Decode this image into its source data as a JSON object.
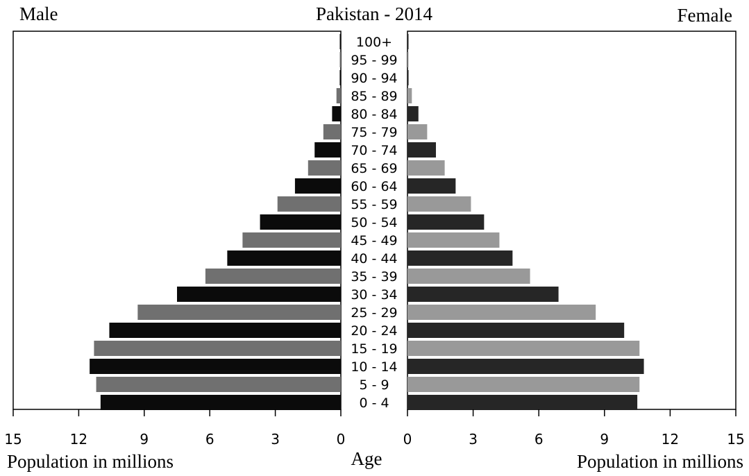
{
  "chart_data": {
    "type": "bar",
    "title": "Pakistan - 2014",
    "left_label": "Male",
    "right_label": "Female",
    "center_label": "Age",
    "xlabel_left": "Population in millions",
    "xlabel_right": "Population in millions",
    "xlim": [
      0,
      15
    ],
    "ticks": [
      0,
      3,
      6,
      9,
      12,
      15
    ],
    "categories": [
      "100+",
      "95 - 99",
      "90 - 94",
      "85 - 89",
      "80 - 84",
      "75 - 79",
      "70 - 74",
      "65 - 69",
      "60 - 64",
      "55 - 59",
      "50 - 54",
      "45 - 49",
      "40 - 44",
      "35 - 39",
      "30 - 34",
      "25 - 29",
      "20 - 24",
      "15 - 19",
      "10 - 14",
      "5 - 9",
      "0 - 4"
    ],
    "series": [
      {
        "name": "Male",
        "values": [
          0.02,
          0.03,
          0.05,
          0.2,
          0.4,
          0.8,
          1.2,
          1.5,
          2.1,
          2.9,
          3.7,
          4.5,
          5.2,
          6.2,
          7.5,
          9.3,
          10.6,
          11.3,
          11.5,
          11.2,
          11.0
        ]
      },
      {
        "name": "Female",
        "values": [
          0.02,
          0.03,
          0.05,
          0.2,
          0.5,
          0.9,
          1.3,
          1.7,
          2.2,
          2.9,
          3.5,
          4.2,
          4.8,
          5.6,
          6.9,
          8.6,
          9.9,
          10.6,
          10.8,
          10.6,
          10.5
        ]
      }
    ],
    "colors": {
      "dark": "#0b0b0b",
      "medium": "#707070",
      "female_dark": "#262626",
      "female_light": "#999999",
      "axis": "#000000"
    }
  }
}
